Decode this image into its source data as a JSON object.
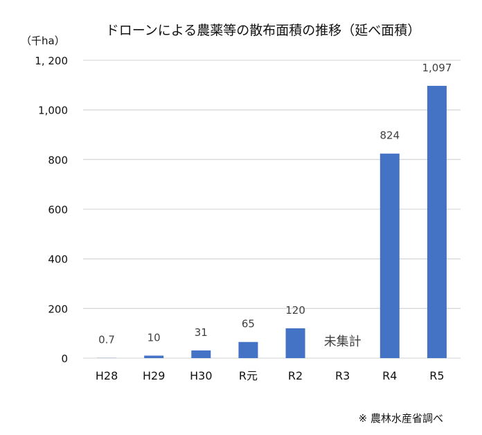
{
  "chart_data": {
    "type": "bar",
    "title": "ドローンによる農薬等の散布面積の推移（延べ面積）",
    "ylabel": "（千ha）",
    "xlabel": "",
    "categories": [
      "H28",
      "H29",
      "H30",
      "R元",
      "R2",
      "R3",
      "R4",
      "R5"
    ],
    "values": [
      0.7,
      10,
      31,
      65,
      120,
      null,
      824,
      1097
    ],
    "data_labels": [
      "0.7",
      "10",
      "31",
      "65",
      "120",
      "未集計",
      "824",
      "1,097"
    ],
    "ylim": [
      0,
      1200
    ],
    "yticks": [
      0,
      200,
      400,
      600,
      800,
      1000,
      1200
    ],
    "ytick_labels": [
      "0",
      "200",
      "400",
      "600",
      "800",
      "1,000",
      "1, 200"
    ],
    "grid": true,
    "bar_color": "#4472C4",
    "note": "※  農林水産省調べ"
  }
}
